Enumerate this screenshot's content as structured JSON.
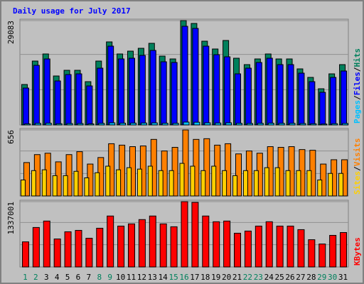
{
  "chart_data": [
    {
      "type": "bar",
      "title": "Daily usage for July 2017",
      "legend_separator": "/",
      "ylim": [
        0,
        29083
      ],
      "yticks": [
        29083
      ],
      "series": [
        {
          "name": "Hits",
          "color": "#00805c",
          "values": [
            11277,
            17806,
            19784,
            13651,
            15234,
            15234,
            12068,
            17806,
            23148,
            19784,
            20575,
            21367,
            22752,
            19191,
            18399,
            29083,
            28292,
            23345,
            21169,
            23543,
            18597,
            16817,
            18399,
            19784,
            18399,
            18399,
            15630,
            13255,
            10090,
            14245,
            16817
          ]
        },
        {
          "name": "Files",
          "color": "#0000ff",
          "values": [
            10288,
            16619,
            18399,
            12266,
            14047,
            14245,
            10881,
            15827,
            21960,
            18399,
            18597,
            19388,
            20773,
            17608,
            17410,
            27500,
            26906,
            21960,
            19586,
            18993,
            14245,
            15827,
            17410,
            18597,
            16817,
            16817,
            14442,
            12068,
            9100,
            13255,
            15036
          ]
        },
        {
          "name": "Pages",
          "color": "#00c0ff",
          "values": [
            300,
            450,
            500,
            350,
            400,
            400,
            300,
            450,
            600,
            500,
            520,
            540,
            580,
            480,
            460,
            800,
            760,
            600,
            540,
            600,
            460,
            420,
            460,
            500,
            460,
            460,
            400,
            340,
            260,
            360,
            420
          ]
        }
      ]
    },
    {
      "type": "bar",
      "ylim": [
        0,
        656
      ],
      "yticks": [
        656
      ],
      "series": [
        {
          "name": "Visits",
          "color": "#ff8000",
          "values": [
            332,
            411,
            425,
            339,
            411,
            440,
            317,
            382,
            519,
            505,
            490,
            497,
            562,
            447,
            483,
            656,
            562,
            569,
            505,
            519,
            418,
            447,
            425,
            490,
            483,
            490,
            461,
            454,
            317,
            360,
            360
          ]
        },
        {
          "name": "Sites",
          "color": "#ffd000",
          "values": [
            159,
            252,
            260,
            202,
            202,
            245,
            180,
            231,
            296,
            260,
            281,
            267,
            296,
            252,
            252,
            324,
            296,
            252,
            296,
            252,
            202,
            252,
            252,
            281,
            281,
            252,
            252,
            252,
            159,
            224,
            224
          ]
        }
      ]
    },
    {
      "type": "bar",
      "ylim": [
        0,
        1337001
      ],
      "yticks": [
        1337001
      ],
      "categories": [
        "1",
        "2",
        "3",
        "4",
        "5",
        "6",
        "7",
        "8",
        "9",
        "10",
        "11",
        "12",
        "13",
        "14",
        "15",
        "16",
        "17",
        "18",
        "19",
        "20",
        "21",
        "22",
        "23",
        "24",
        "25",
        "26",
        "27",
        "28",
        "29",
        "30",
        "31"
      ],
      "category_colors": [
        "#00805c",
        "#00805c",
        "#000000",
        "#000000",
        "#000000",
        "#000000",
        "#000000",
        "#00805c",
        "#00805c",
        "#000000",
        "#000000",
        "#000000",
        "#000000",
        "#000000",
        "#00805c",
        "#00805c",
        "#000000",
        "#000000",
        "#000000",
        "#000000",
        "#000000",
        "#00805c",
        "#00805c",
        "#000000",
        "#000000",
        "#000000",
        "#000000",
        "#000000",
        "#00805c",
        "#00805c",
        "#000000"
      ],
      "series": [
        {
          "name": "KBytes",
          "color": "#ff0000",
          "values": [
            514000,
            808000,
            940000,
            573000,
            720000,
            749000,
            588000,
            793000,
            1043000,
            837000,
            882000,
            970000,
            1043000,
            882000,
            823000,
            1337001,
            1322000,
            1043000,
            926000,
            940000,
            691000,
            735000,
            837000,
            926000,
            837000,
            837000,
            764000,
            558000,
            470000,
            647000,
            705000
          ]
        }
      ]
    }
  ]
}
